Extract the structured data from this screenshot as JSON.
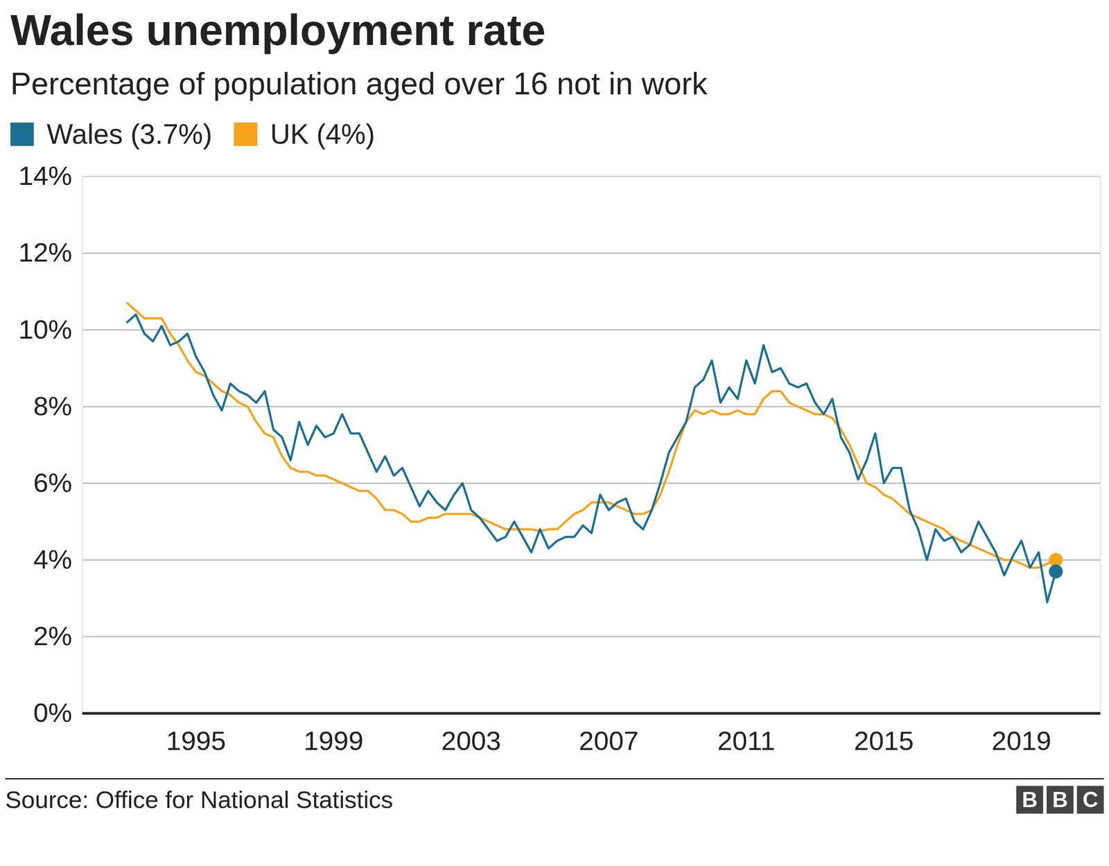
{
  "chart_data": {
    "type": "line",
    "title": "Wales unemployment rate",
    "subtitle": "Percentage of population aged over 16 not in work",
    "source": "Source: Office for National Statistics",
    "brand": "BBC",
    "grid": true,
    "xlim": [
      1991.7,
      2021.3
    ],
    "xticks": [
      1995,
      1999,
      2003,
      2007,
      2011,
      2015,
      2019
    ],
    "ylim": [
      0,
      14
    ],
    "yticks": [
      {
        "value": 0,
        "label": "0%"
      },
      {
        "value": 2,
        "label": "2%"
      },
      {
        "value": 4,
        "label": "4%"
      },
      {
        "value": 6,
        "label": "6%"
      },
      {
        "value": 8,
        "label": "8%"
      },
      {
        "value": 10,
        "label": "10%"
      },
      {
        "value": 12,
        "label": "12%"
      },
      {
        "value": 14,
        "label": "14%"
      }
    ],
    "x": [
      1993,
      1993.25,
      1993.5,
      1993.75,
      1994,
      1994.25,
      1994.5,
      1994.75,
      1995,
      1995.25,
      1995.5,
      1995.75,
      1996,
      1996.25,
      1996.5,
      1996.75,
      1997,
      1997.25,
      1997.5,
      1997.75,
      1998,
      1998.25,
      1998.5,
      1998.75,
      1999,
      1999.25,
      1999.5,
      1999.75,
      2000,
      2000.25,
      2000.5,
      2000.75,
      2001,
      2001.25,
      2001.5,
      2001.75,
      2002,
      2002.25,
      2002.5,
      2002.75,
      2003,
      2003.25,
      2003.5,
      2003.75,
      2004,
      2004.25,
      2004.5,
      2004.75,
      2005,
      2005.25,
      2005.5,
      2005.75,
      2006,
      2006.25,
      2006.5,
      2006.75,
      2007,
      2007.25,
      2007.5,
      2007.75,
      2008,
      2008.25,
      2008.5,
      2008.75,
      2009,
      2009.25,
      2009.5,
      2009.75,
      2010,
      2010.25,
      2010.5,
      2010.75,
      2011,
      2011.25,
      2011.5,
      2011.75,
      2012,
      2012.25,
      2012.5,
      2012.75,
      2013,
      2013.25,
      2013.5,
      2013.75,
      2014,
      2014.25,
      2014.5,
      2014.75,
      2015,
      2015.25,
      2015.5,
      2015.75,
      2016,
      2016.25,
      2016.5,
      2016.75,
      2017,
      2017.25,
      2017.5,
      2017.75,
      2018,
      2018.25,
      2018.5,
      2018.75,
      2019,
      2019.25,
      2019.5,
      2019.75,
      2020
    ],
    "series": [
      {
        "name": "Wales (3.7%)",
        "color": "#1a6f93",
        "values": [
          10.2,
          10.4,
          9.9,
          9.7,
          10.1,
          9.6,
          9.7,
          9.9,
          9.3,
          8.9,
          8.3,
          7.9,
          8.6,
          8.4,
          8.3,
          8.1,
          8.4,
          7.4,
          7.2,
          6.6,
          7.6,
          7.0,
          7.5,
          7.2,
          7.3,
          7.8,
          7.3,
          7.3,
          6.8,
          6.3,
          6.7,
          6.2,
          6.4,
          5.9,
          5.4,
          5.8,
          5.5,
          5.3,
          5.7,
          6.0,
          5.3,
          5.1,
          4.8,
          4.5,
          4.6,
          5.0,
          4.6,
          4.2,
          4.8,
          4.3,
          4.5,
          4.6,
          4.6,
          4.9,
          4.7,
          5.7,
          5.3,
          5.5,
          5.6,
          5.0,
          4.8,
          5.3,
          6.0,
          6.8,
          7.2,
          7.6,
          8.5,
          8.7,
          9.2,
          8.1,
          8.5,
          8.2,
          9.2,
          8.6,
          9.6,
          8.9,
          9.0,
          8.6,
          8.5,
          8.6,
          8.1,
          7.8,
          8.2,
          7.2,
          6.8,
          6.1,
          6.6,
          7.3,
          6.0,
          6.4,
          6.4,
          5.3,
          4.8,
          4.0,
          4.8,
          4.5,
          4.6,
          4.2,
          4.4,
          5.0,
          4.6,
          4.2,
          3.6,
          4.1,
          4.5,
          3.8,
          4.2,
          2.9,
          3.7
        ]
      },
      {
        "name": "UK (4%)",
        "color": "#f7a21b",
        "values": [
          10.7,
          10.5,
          10.3,
          10.3,
          10.3,
          9.9,
          9.6,
          9.2,
          8.9,
          8.8,
          8.6,
          8.4,
          8.3,
          8.1,
          8.0,
          7.6,
          7.3,
          7.2,
          6.7,
          6.4,
          6.3,
          6.3,
          6.2,
          6.2,
          6.1,
          6.0,
          5.9,
          5.8,
          5.8,
          5.6,
          5.3,
          5.3,
          5.2,
          5.0,
          5.0,
          5.1,
          5.1,
          5.2,
          5.2,
          5.2,
          5.2,
          5.1,
          5.0,
          4.9,
          4.8,
          4.8,
          4.8,
          4.8,
          4.75,
          4.8,
          4.8,
          5.0,
          5.2,
          5.3,
          5.5,
          5.5,
          5.5,
          5.4,
          5.3,
          5.2,
          5.2,
          5.3,
          5.7,
          6.3,
          7.0,
          7.6,
          7.9,
          7.8,
          7.9,
          7.8,
          7.8,
          7.9,
          7.8,
          7.8,
          8.2,
          8.4,
          8.4,
          8.1,
          8.0,
          7.9,
          7.8,
          7.8,
          7.7,
          7.4,
          7.0,
          6.5,
          6.0,
          5.9,
          5.7,
          5.6,
          5.4,
          5.2,
          5.1,
          5.0,
          4.9,
          4.8,
          4.6,
          4.5,
          4.4,
          4.3,
          4.2,
          4.1,
          4.0,
          4.0,
          3.9,
          3.8,
          3.8,
          3.9,
          4.0
        ]
      }
    ]
  }
}
